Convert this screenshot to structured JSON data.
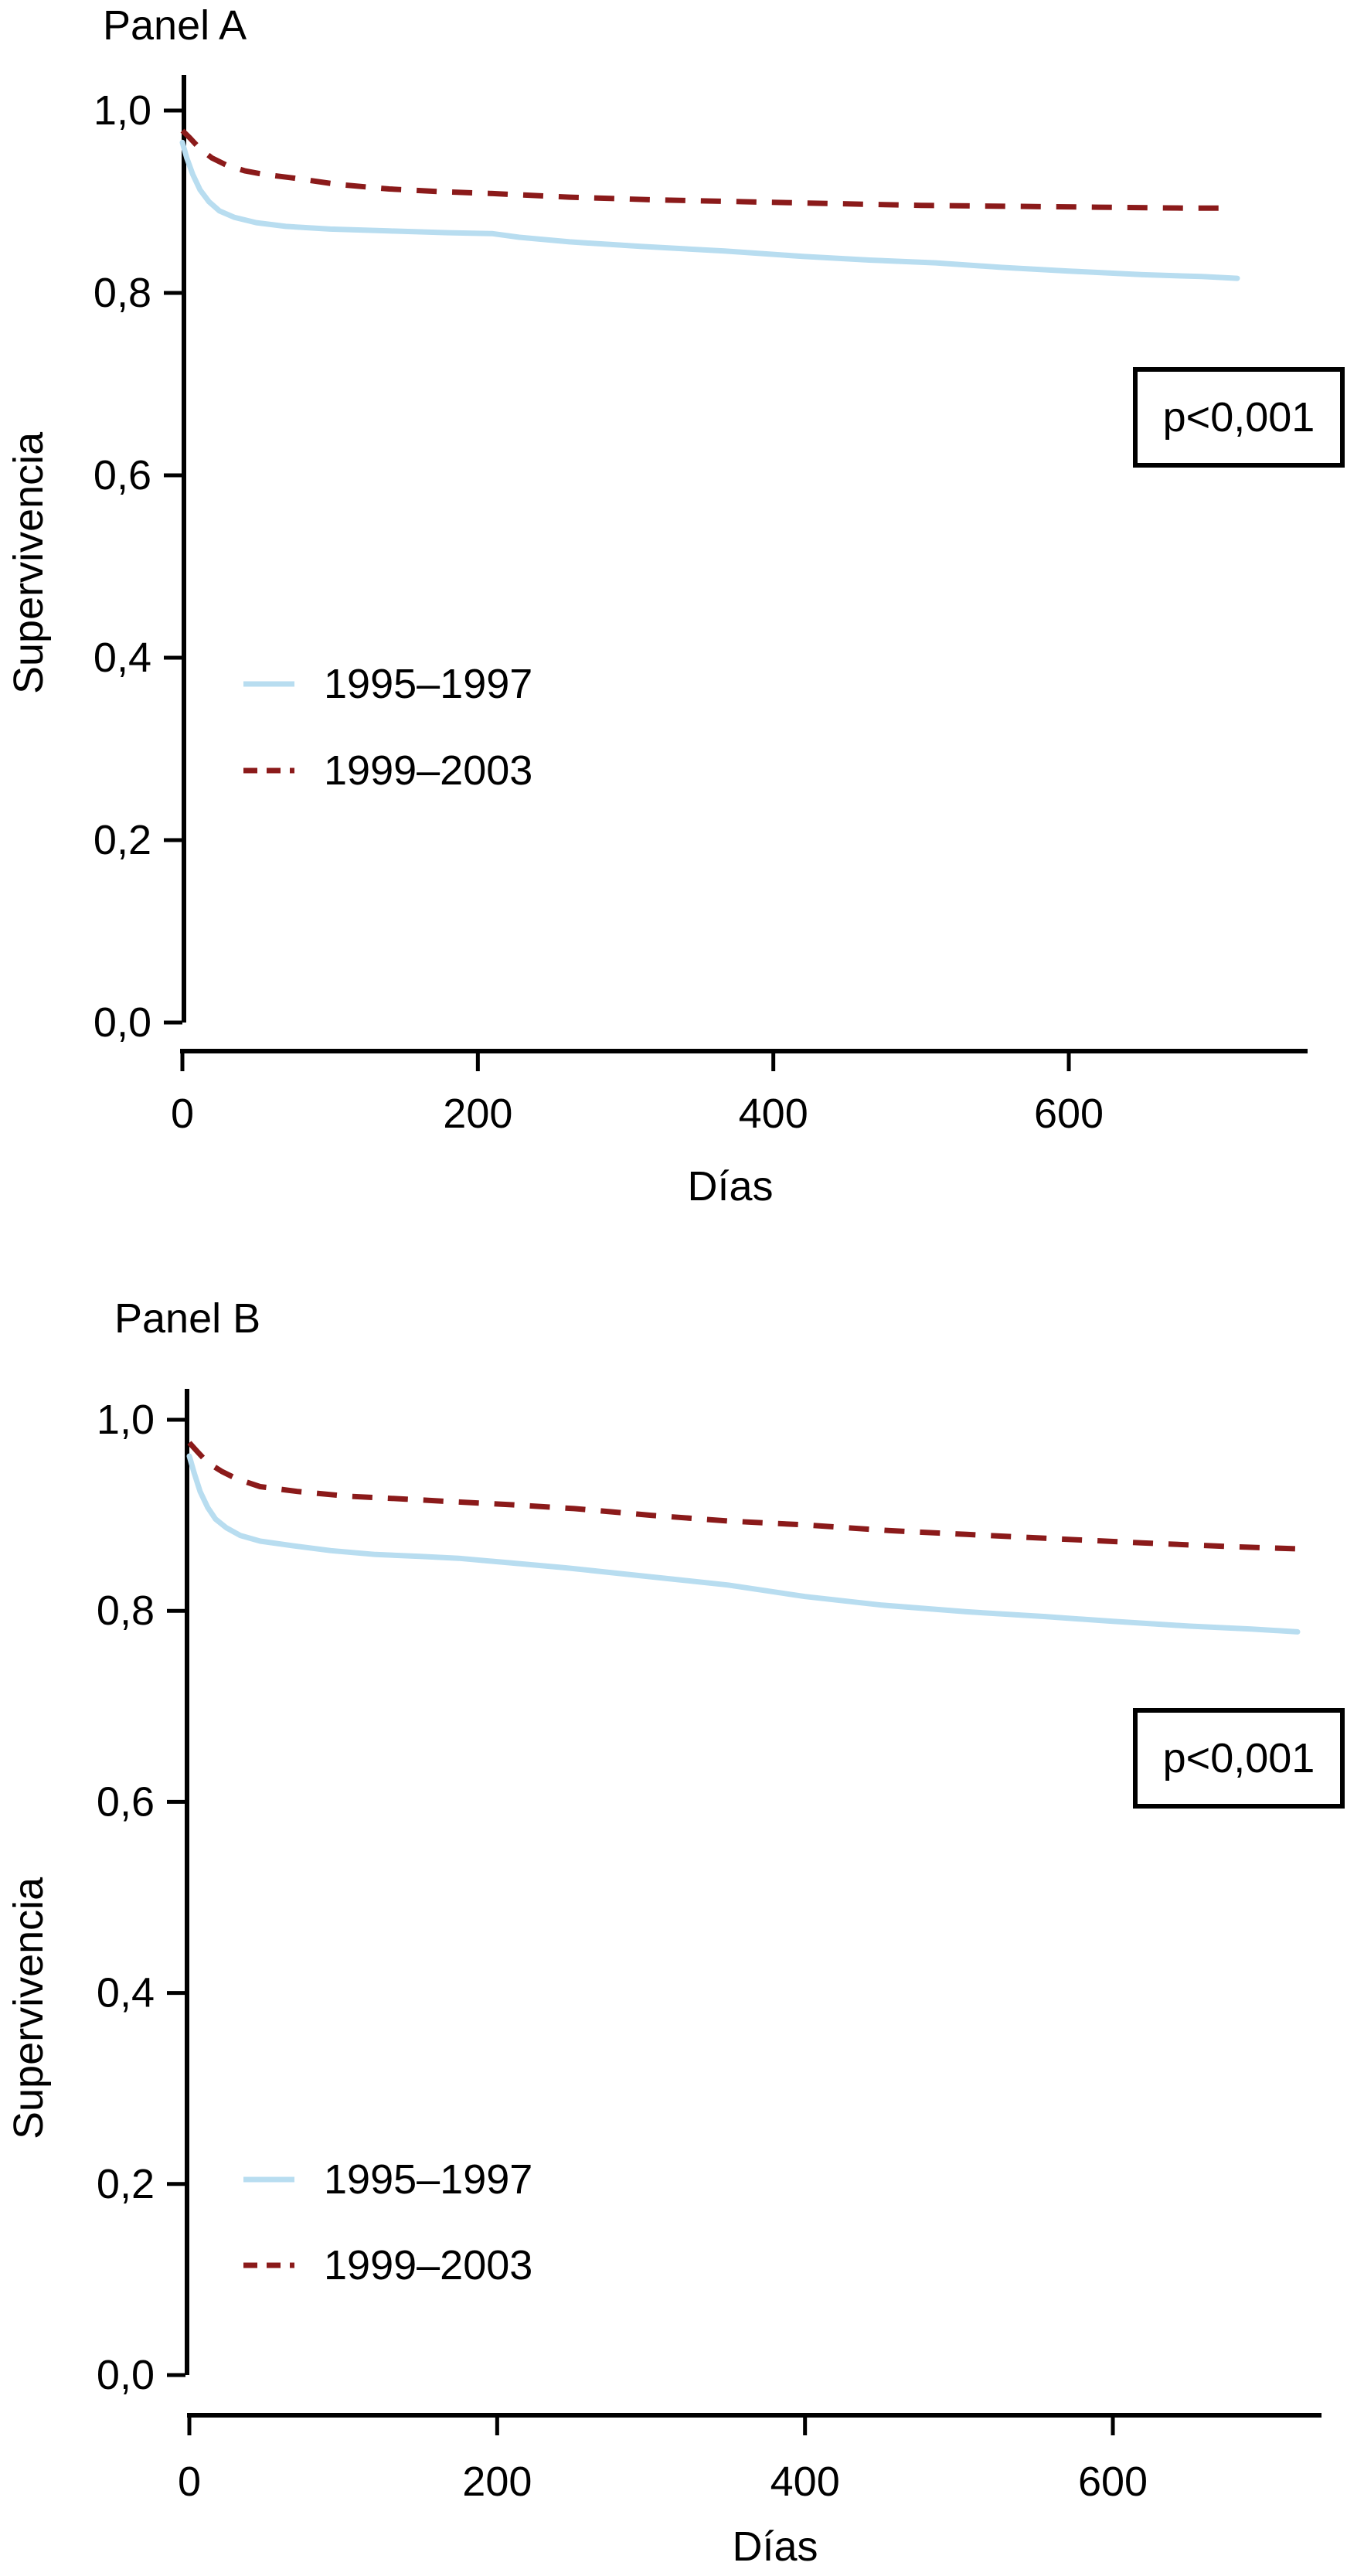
{
  "page": {
    "background": "#ffffff",
    "text_color": "#000000"
  },
  "colors": {
    "axis": "#000000",
    "series_1995_1997": "#b8ddf0",
    "series_1999_2003": "#8b1a1a"
  },
  "chart_data": [
    {
      "type": "line",
      "subtype": "kaplan-meier-survival",
      "title": "Panel A",
      "xlabel": "Días",
      "ylabel": "Supervivencia",
      "annotation": "p<0,001",
      "grid": false,
      "legend_position": "inside-left",
      "xlim": [
        0,
        760
      ],
      "ylim": [
        0.0,
        1.0
      ],
      "x_ticks": [
        0,
        200,
        400,
        600
      ],
      "x_tick_labels": [
        "0",
        "200",
        "400",
        "600"
      ],
      "y_ticks": [
        1.0,
        0.8,
        0.6,
        0.4,
        0.2,
        0.0
      ],
      "y_tick_labels": [
        "1,0",
        "0,8",
        "0,6",
        "0,4",
        "0,2",
        "0,0"
      ],
      "series": [
        {
          "name": "1995–1997",
          "color": "#b8ddf0",
          "line_style": "solid",
          "points": [
            [
              0,
              0.965
            ],
            [
              3,
              0.948
            ],
            [
              7,
              0.93
            ],
            [
              12,
              0.913
            ],
            [
              18,
              0.9
            ],
            [
              25,
              0.89
            ],
            [
              35,
              0.883
            ],
            [
              50,
              0.877
            ],
            [
              70,
              0.873
            ],
            [
              100,
              0.87
            ],
            [
              140,
              0.868
            ],
            [
              180,
              0.866
            ],
            [
              210,
              0.865
            ],
            [
              228,
              0.861
            ],
            [
              262,
              0.856
            ],
            [
              310,
              0.851
            ],
            [
              367,
              0.846
            ],
            [
              420,
              0.84
            ],
            [
              465,
              0.836
            ],
            [
              510,
              0.833
            ],
            [
              555,
              0.828
            ],
            [
              600,
              0.824
            ],
            [
              650,
              0.82
            ],
            [
              690,
              0.818
            ],
            [
              714,
              0.816
            ]
          ]
        },
        {
          "name": "1999–2003",
          "color": "#8b1a1a",
          "line_style": "dashed",
          "points": [
            [
              0,
              0.978
            ],
            [
              5,
              0.97
            ],
            [
              12,
              0.958
            ],
            [
              20,
              0.948
            ],
            [
              30,
              0.94
            ],
            [
              42,
              0.934
            ],
            [
              55,
              0.93
            ],
            [
              75,
              0.926
            ],
            [
              105,
              0.919
            ],
            [
              140,
              0.914
            ],
            [
              175,
              0.911
            ],
            [
              210,
              0.909
            ],
            [
              262,
              0.905
            ],
            [
              320,
              0.902
            ],
            [
              380,
              0.9
            ],
            [
              440,
              0.898
            ],
            [
              500,
              0.896
            ],
            [
              560,
              0.895
            ],
            [
              620,
              0.894
            ],
            [
              680,
              0.893
            ],
            [
              710,
              0.893
            ]
          ]
        }
      ]
    },
    {
      "type": "line",
      "subtype": "kaplan-meier-survival",
      "title": "Panel B",
      "xlabel": "Días",
      "ylabel": "Supervivencia",
      "annotation": "p<0,001",
      "grid": false,
      "legend_position": "inside-left",
      "xlim": [
        0,
        760
      ],
      "ylim": [
        0.0,
        1.0
      ],
      "x_ticks": [
        0,
        200,
        400,
        600
      ],
      "x_tick_labels": [
        "0",
        "200",
        "400",
        "600"
      ],
      "y_ticks": [
        1.0,
        0.8,
        0.6,
        0.4,
        0.2,
        0.0
      ],
      "y_tick_labels": [
        "1,0",
        "0,8",
        "0,6",
        "0,4",
        "0,2",
        "0,0"
      ],
      "series": [
        {
          "name": "1995–1997",
          "color": "#b8ddf0",
          "line_style": "solid",
          "points": [
            [
              0,
              0.962
            ],
            [
              3,
              0.945
            ],
            [
              7,
              0.925
            ],
            [
              12,
              0.908
            ],
            [
              17,
              0.896
            ],
            [
              24,
              0.887
            ],
            [
              33,
              0.879
            ],
            [
              46,
              0.873
            ],
            [
              68,
              0.868
            ],
            [
              92,
              0.863
            ],
            [
              121,
              0.859
            ],
            [
              150,
              0.857
            ],
            [
              175,
              0.855
            ],
            [
              210,
              0.85
            ],
            [
              245,
              0.845
            ],
            [
              280,
              0.839
            ],
            [
              315,
              0.833
            ],
            [
              350,
              0.827
            ],
            [
              400,
              0.815
            ],
            [
              450,
              0.806
            ],
            [
              505,
              0.799
            ],
            [
              556,
              0.794
            ],
            [
              600,
              0.789
            ],
            [
              650,
              0.784
            ],
            [
              690,
              0.781
            ],
            [
              720,
              0.778
            ]
          ]
        },
        {
          "name": "1999–2003",
          "color": "#8b1a1a",
          "line_style": "dashed",
          "points": [
            [
              0,
              0.976
            ],
            [
              5,
              0.967
            ],
            [
              12,
              0.955
            ],
            [
              21,
              0.946
            ],
            [
              31,
              0.938
            ],
            [
              46,
              0.93
            ],
            [
              70,
              0.925
            ],
            [
              103,
              0.92
            ],
            [
              140,
              0.917
            ],
            [
              174,
              0.914
            ],
            [
              210,
              0.911
            ],
            [
              250,
              0.907
            ],
            [
              300,
              0.9
            ],
            [
              350,
              0.894
            ],
            [
              400,
              0.89
            ],
            [
              455,
              0.884
            ],
            [
              505,
              0.88
            ],
            [
              556,
              0.876
            ],
            [
              620,
              0.871
            ],
            [
              680,
              0.867
            ],
            [
              719,
              0.865
            ]
          ]
        }
      ]
    }
  ]
}
